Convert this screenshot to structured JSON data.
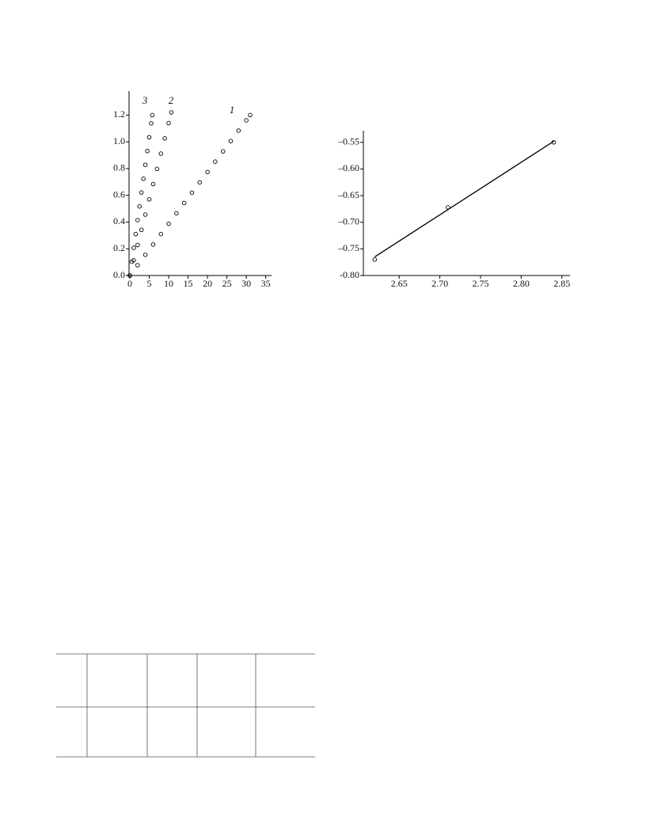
{
  "chart_data": [
    {
      "type": "scatter",
      "series": [
        {
          "name": "1",
          "x": [
            0,
            2,
            4,
            6,
            8,
            10,
            12,
            14,
            16,
            18,
            20,
            22,
            24,
            26,
            28,
            30,
            31
          ],
          "values": [
            0,
            0.077,
            0.155,
            0.232,
            0.31,
            0.387,
            0.465,
            0.542,
            0.619,
            0.697,
            0.774,
            0.852,
            0.929,
            1.006,
            1.084,
            1.161,
            1.2
          ]
        },
        {
          "name": "2",
          "x": [
            0,
            1,
            2,
            3,
            4,
            5,
            6,
            7,
            8,
            9,
            10,
            10.7
          ],
          "values": [
            0,
            0.114,
            0.228,
            0.342,
            0.456,
            0.57,
            0.684,
            0.798,
            0.912,
            1.026,
            1.14,
            1.22
          ]
        },
        {
          "name": "3",
          "x": [
            0,
            0.5,
            1,
            1.5,
            2,
            2.5,
            3,
            3.5,
            4,
            4.5,
            5,
            5.5,
            5.8
          ],
          "values": [
            0,
            0.103,
            0.207,
            0.31,
            0.414,
            0.517,
            0.621,
            0.724,
            0.828,
            0.931,
            1.034,
            1.138,
            1.2
          ]
        }
      ],
      "xlim": [
        0,
        36.5
      ],
      "ylim": [
        0,
        1.38
      ],
      "xticks": [
        0,
        5,
        10,
        15,
        20,
        25,
        30,
        35
      ],
      "yticks": [
        {
          "value": 0,
          "label": "0.0"
        },
        {
          "value": 0.2,
          "label": "0.2"
        },
        {
          "value": 0.4,
          "label": "0.4"
        },
        {
          "value": 0.6,
          "label": "0.6"
        },
        {
          "value": 0.8,
          "label": "0.8"
        },
        {
          "value": 1,
          "label": "1.0"
        },
        {
          "value": 1.2,
          "label": "1.2"
        }
      ]
    },
    {
      "type": "scatter",
      "series": [
        {
          "x": [
            2.62,
            2.71,
            2.84
          ],
          "values": [
            -0.77,
            -0.672,
            -0.55
          ]
        }
      ],
      "fit": {
        "x": [
          2.62,
          2.84
        ],
        "values": [
          -0.765,
          -0.548
        ]
      },
      "xlim": [
        2.607,
        2.86
      ],
      "ylim": [
        -0.8,
        -0.528
      ],
      "xticks": [
        2.65,
        {
          "value": 2.7,
          "label": "2.70"
        },
        2.75,
        {
          "value": 2.8,
          "label": "2.80"
        },
        2.85
      ],
      "yticks": [
        {
          "value": -0.55,
          "label": "–0.55"
        },
        {
          "value": -0.6,
          "label": "–0.60"
        },
        {
          "value": -0.65,
          "label": "–0.65"
        },
        {
          "value": -0.7,
          "label": "–0.70"
        },
        {
          "value": -0.75,
          "label": "–0.75"
        },
        {
          "value": -0.8,
          "label": "-0.80"
        }
      ]
    }
  ]
}
